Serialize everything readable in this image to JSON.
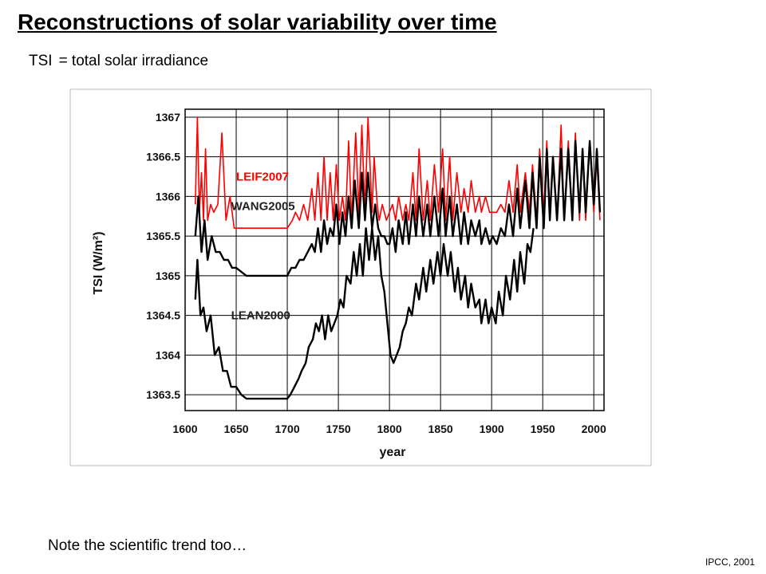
{
  "slide": {
    "title": "Reconstructions of solar variability over time",
    "subtitle_term": "TSI",
    "subtitle_def": "= total solar irradiance",
    "note": "Note the scientific trend too…",
    "source": "IPCC, 2001"
  },
  "chart_data": {
    "type": "line",
    "title": "",
    "xlabel": "year",
    "ylabel": "TSI (W/m²)",
    "xlim": [
      1600,
      2010
    ],
    "ylim": [
      1363.3,
      1367.1
    ],
    "x_ticks": [
      1600,
      1650,
      1700,
      1750,
      1800,
      1850,
      1900,
      1950,
      2000
    ],
    "y_ticks": [
      1363.5,
      1364,
      1364.5,
      1365,
      1365.5,
      1366,
      1366.5,
      1367
    ],
    "x_tick_labels": [
      "1600",
      "1650",
      "1700",
      "1750",
      "1800",
      "1850",
      "1900",
      "1950",
      "2000"
    ],
    "y_tick_labels": [
      "1363.5",
      "1364",
      "1364.5",
      "1365",
      "1365.5",
      "1366",
      "1366.5",
      "1367"
    ],
    "grid": true,
    "series": [
      {
        "name": "LEIF2007",
        "color": "#ff0000",
        "x": [
          1610,
          1612,
          1614,
          1616,
          1618,
          1620,
          1622,
          1625,
          1628,
          1632,
          1636,
          1640,
          1644,
          1648,
          1652,
          1660,
          1670,
          1680,
          1690,
          1700,
          1705,
          1708,
          1712,
          1716,
          1720,
          1724,
          1727,
          1730,
          1733,
          1736,
          1739,
          1742,
          1745,
          1748,
          1751,
          1754,
          1757,
          1760,
          1763,
          1767,
          1770,
          1773,
          1776,
          1779,
          1783,
          1785,
          1788,
          1790,
          1793,
          1797,
          1800,
          1803,
          1806,
          1809,
          1813,
          1816,
          1819,
          1823,
          1826,
          1829,
          1833,
          1837,
          1840,
          1844,
          1848,
          1852,
          1855,
          1859,
          1862,
          1866,
          1870,
          1873,
          1877,
          1880,
          1884,
          1888,
          1890,
          1894,
          1898,
          1901,
          1905,
          1909,
          1913,
          1917,
          1921,
          1925,
          1928,
          1933,
          1937,
          1940,
          1944,
          1947,
          1951,
          1954,
          1957,
          1960,
          1964,
          1968,
          1971,
          1975,
          1979,
          1982,
          1986,
          1989,
          1992,
          1996,
          2000,
          2003,
          2006
        ],
        "y": [
          1365.9,
          1367.0,
          1365.8,
          1366.3,
          1365.7,
          1366.6,
          1365.7,
          1365.9,
          1365.8,
          1365.9,
          1366.8,
          1365.7,
          1366.0,
          1365.6,
          1365.6,
          1365.6,
          1365.6,
          1365.6,
          1365.6,
          1365.6,
          1365.7,
          1365.8,
          1365.7,
          1365.9,
          1365.7,
          1366.1,
          1365.7,
          1366.3,
          1365.7,
          1366.5,
          1365.7,
          1366.3,
          1365.7,
          1366.4,
          1365.7,
          1366.0,
          1365.7,
          1366.7,
          1365.7,
          1366.8,
          1365.8,
          1366.9,
          1365.8,
          1367.0,
          1365.8,
          1366.5,
          1365.9,
          1365.7,
          1365.9,
          1365.7,
          1365.8,
          1365.9,
          1365.7,
          1366.0,
          1365.7,
          1365.9,
          1365.7,
          1366.3,
          1365.7,
          1366.6,
          1365.7,
          1366.2,
          1365.7,
          1366.4,
          1365.8,
          1366.6,
          1365.7,
          1366.5,
          1365.7,
          1366.3,
          1365.8,
          1366.1,
          1365.8,
          1366.2,
          1365.8,
          1366.0,
          1365.8,
          1366.0,
          1365.8,
          1365.8,
          1365.8,
          1365.9,
          1365.8,
          1366.2,
          1365.8,
          1366.4,
          1365.8,
          1366.3,
          1365.8,
          1366.4,
          1365.7,
          1366.6,
          1365.8,
          1366.7,
          1365.8,
          1366.5,
          1365.7,
          1366.9,
          1365.7,
          1366.7,
          1365.7,
          1366.8,
          1365.7,
          1366.6,
          1365.7,
          1366.7,
          1365.8,
          1366.5,
          1365.7
        ]
      },
      {
        "name": "WANG2005",
        "color": "#000000",
        "x": [
          1610,
          1613,
          1616,
          1619,
          1622,
          1626,
          1630,
          1634,
          1638,
          1642,
          1646,
          1650,
          1655,
          1660,
          1670,
          1680,
          1690,
          1700,
          1704,
          1708,
          1712,
          1716,
          1720,
          1724,
          1727,
          1730,
          1733,
          1736,
          1739,
          1742,
          1745,
          1748,
          1751,
          1754,
          1757,
          1760,
          1763,
          1766,
          1770,
          1773,
          1776,
          1779,
          1783,
          1786,
          1789,
          1792,
          1795,
          1798,
          1800,
          1803,
          1806,
          1809,
          1813,
          1816,
          1819,
          1823,
          1826,
          1829,
          1833,
          1837,
          1840,
          1844,
          1848,
          1852,
          1855,
          1859,
          1862,
          1866,
          1870,
          1873,
          1877,
          1880,
          1884,
          1888,
          1890,
          1894,
          1898,
          1901,
          1905,
          1909,
          1913,
          1917,
          1921,
          1925,
          1928,
          1933,
          1937,
          1940,
          1944,
          1947,
          1951,
          1954,
          1957,
          1960,
          1964,
          1968,
          1971,
          1975,
          1979,
          1982,
          1986,
          1989,
          1992,
          1996,
          2000,
          2003,
          2006
        ],
        "y": [
          1365.5,
          1366.0,
          1365.3,
          1365.7,
          1365.2,
          1365.5,
          1365.3,
          1365.3,
          1365.2,
          1365.2,
          1365.1,
          1365.1,
          1365.05,
          1365.0,
          1365.0,
          1365.0,
          1365.0,
          1365.0,
          1365.1,
          1365.1,
          1365.2,
          1365.2,
          1365.3,
          1365.4,
          1365.3,
          1365.6,
          1365.3,
          1365.7,
          1365.4,
          1365.6,
          1365.5,
          1365.9,
          1365.4,
          1365.8,
          1365.5,
          1366.0,
          1365.6,
          1366.2,
          1365.6,
          1366.3,
          1365.7,
          1366.3,
          1365.6,
          1365.9,
          1365.6,
          1365.5,
          1365.5,
          1365.4,
          1365.4,
          1365.6,
          1365.3,
          1365.7,
          1365.4,
          1365.8,
          1365.4,
          1365.9,
          1365.5,
          1366.0,
          1365.5,
          1365.9,
          1365.5,
          1366.0,
          1365.5,
          1366.1,
          1365.5,
          1366.0,
          1365.5,
          1365.9,
          1365.4,
          1365.8,
          1365.4,
          1365.7,
          1365.5,
          1365.7,
          1365.4,
          1365.6,
          1365.4,
          1365.5,
          1365.4,
          1365.6,
          1365.5,
          1365.9,
          1365.5,
          1366.1,
          1365.6,
          1366.2,
          1365.6,
          1366.3,
          1365.6,
          1366.5,
          1365.6,
          1366.6,
          1365.7,
          1366.5,
          1365.7,
          1366.6,
          1365.7,
          1366.6,
          1365.7,
          1366.7,
          1365.8,
          1366.6,
          1365.8,
          1366.7,
          1365.9,
          1366.6,
          1365.8
        ]
      },
      {
        "name": "LEAN2000",
        "color": "#000000",
        "x": [
          1610,
          1612,
          1615,
          1618,
          1621,
          1625,
          1629,
          1633,
          1637,
          1641,
          1645,
          1650,
          1655,
          1660,
          1670,
          1680,
          1690,
          1700,
          1703,
          1707,
          1711,
          1714,
          1718,
          1721,
          1725,
          1728,
          1731,
          1734,
          1737,
          1740,
          1743,
          1746,
          1749,
          1752,
          1755,
          1758,
          1762,
          1765,
          1768,
          1771,
          1774,
          1777,
          1780,
          1783,
          1786,
          1789,
          1792,
          1795,
          1798,
          1801,
          1804,
          1807,
          1810,
          1813,
          1816,
          1819,
          1822,
          1826,
          1829,
          1833,
          1836,
          1840,
          1843,
          1847,
          1850,
          1853,
          1857,
          1860,
          1864,
          1867,
          1870,
          1874,
          1877,
          1880,
          1884,
          1888,
          1890,
          1894,
          1897,
          1900,
          1904,
          1907,
          1911,
          1914,
          1918,
          1922,
          1925,
          1928,
          1932,
          1935,
          1938,
          1941
        ],
        "y": [
          1364.7,
          1365.2,
          1364.5,
          1364.6,
          1364.3,
          1364.5,
          1364.0,
          1364.1,
          1363.8,
          1363.8,
          1363.6,
          1363.6,
          1363.5,
          1363.45,
          1363.45,
          1363.45,
          1363.45,
          1363.45,
          1363.5,
          1363.6,
          1363.7,
          1363.8,
          1363.9,
          1364.1,
          1364.2,
          1364.4,
          1364.3,
          1364.5,
          1364.2,
          1364.5,
          1364.3,
          1364.4,
          1364.5,
          1364.7,
          1364.6,
          1365.0,
          1364.9,
          1365.3,
          1365.0,
          1365.4,
          1365.0,
          1365.6,
          1365.2,
          1365.6,
          1365.2,
          1365.5,
          1365.0,
          1364.8,
          1364.4,
          1364.0,
          1363.9,
          1364.0,
          1364.1,
          1364.3,
          1364.4,
          1364.6,
          1364.5,
          1364.9,
          1364.7,
          1365.1,
          1364.8,
          1365.2,
          1364.9,
          1365.3,
          1365.0,
          1365.4,
          1365.0,
          1365.3,
          1364.8,
          1365.1,
          1364.7,
          1365.0,
          1364.6,
          1364.9,
          1364.6,
          1364.7,
          1364.4,
          1364.7,
          1364.4,
          1364.6,
          1364.4,
          1364.8,
          1364.5,
          1365.0,
          1364.7,
          1365.2,
          1364.8,
          1365.3,
          1364.9,
          1365.4,
          1365.3,
          1365.6
        ]
      }
    ],
    "annotations": [
      {
        "text": "LEIF2007",
        "x": 1650,
        "y": 1366.2,
        "color": "#ff0000"
      },
      {
        "text": "WANG2005",
        "x": 1645,
        "y": 1365.83,
        "color": "#222222"
      },
      {
        "text": "LEAN2000",
        "x": 1645,
        "y": 1364.45,
        "color": "#222222"
      }
    ]
  }
}
